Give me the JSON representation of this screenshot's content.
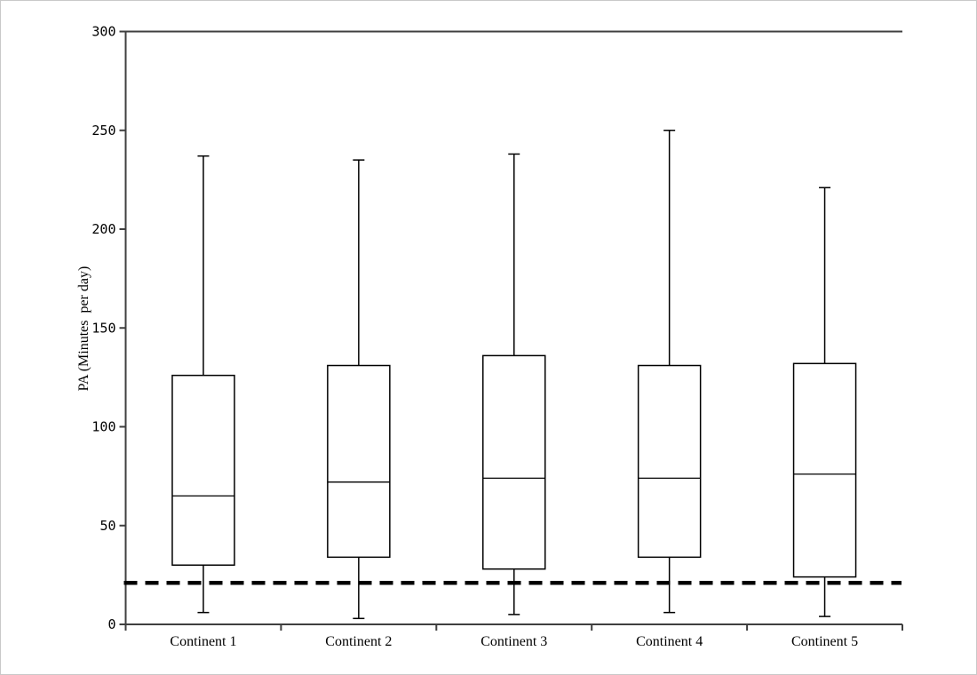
{
  "figure": {
    "background": "#ffffff",
    "border_color": "#c9c9c9"
  },
  "chart_data": {
    "type": "boxplot",
    "title": "",
    "xlabel": "",
    "ylabel": "PA (Minutes  per day)",
    "ylim": [
      0,
      300
    ],
    "yticks": [
      0,
      50,
      100,
      150,
      200,
      250,
      300
    ],
    "grid": false,
    "legend": null,
    "categories": [
      "Continent 1",
      "Continent 2",
      "Continent 3",
      "Continent 4",
      "Continent 5"
    ],
    "series": [
      {
        "category": "Continent 1",
        "whisker_low": 6,
        "q1": 30,
        "median": 65,
        "q3": 126,
        "whisker_high": 237
      },
      {
        "category": "Continent 2",
        "whisker_low": 3,
        "q1": 34,
        "median": 72,
        "q3": 131,
        "whisker_high": 235
      },
      {
        "category": "Continent 3",
        "whisker_low": 5,
        "q1": 28,
        "median": 74,
        "q3": 136,
        "whisker_high": 238
      },
      {
        "category": "Continent 4",
        "whisker_low": 6,
        "q1": 34,
        "median": 74,
        "q3": 131,
        "whisker_high": 250
      },
      {
        "category": "Continent 5",
        "whisker_low": 4,
        "q1": 24,
        "median": 76,
        "q3": 132,
        "whisker_high": 221
      }
    ],
    "reference_line": {
      "value": 21,
      "style": "dashed",
      "color": "#000000"
    },
    "colors": {
      "box_fill": "#ffffff",
      "box_stroke": "#000000",
      "axis": "#3f3f3f",
      "text": "#000000"
    }
  }
}
